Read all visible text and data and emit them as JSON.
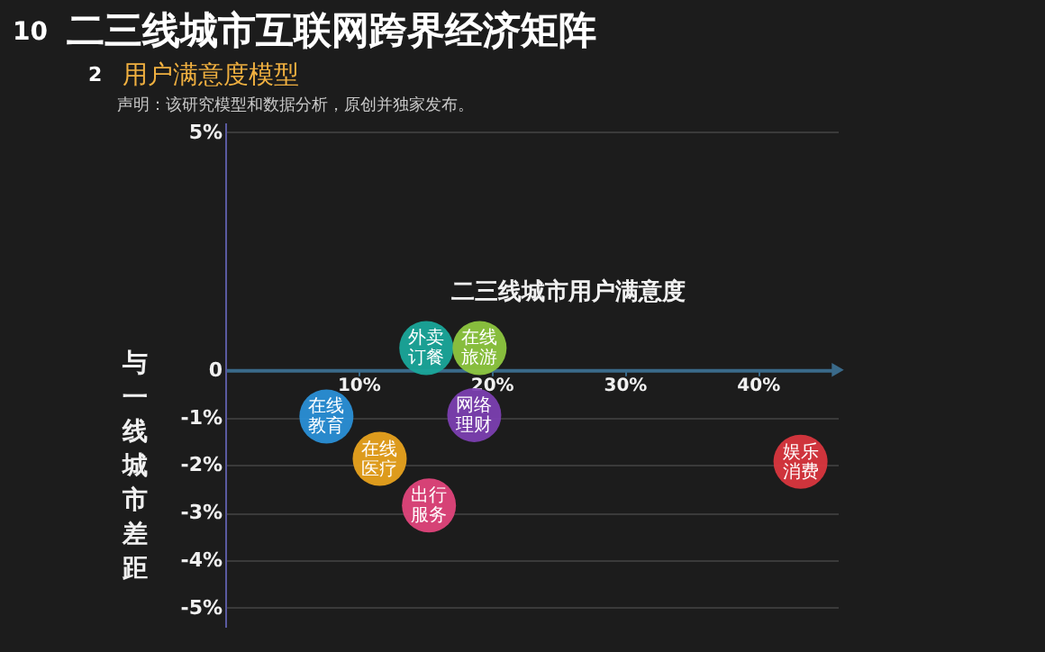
{
  "chart_data": {
    "type": "scatter",
    "title": "二三线城市互联网跨界经济矩阵",
    "subtitle": "用户满意度模型",
    "annotations": [
      "10",
      "2",
      "声明：该研究模型和数据分析，原创并独家发布。"
    ],
    "xlabel": "二三线城市用户满意度",
    "ylabel": "与一线城市差距",
    "xlim": [
      0,
      46
    ],
    "xticks": [
      {
        "value": 10,
        "label": "10%"
      },
      {
        "value": 20,
        "label": "20%"
      },
      {
        "value": 30,
        "label": "30%"
      },
      {
        "value": 40,
        "label": "40%"
      }
    ],
    "ylim": [
      -5.4,
      5.2
    ],
    "yticks": [
      {
        "value": 5,
        "label": "5%"
      },
      0,
      {
        "value": -1,
        "label": "-1%"
      },
      {
        "value": -2,
        "label": "-2%"
      },
      {
        "value": -3,
        "label": "-3%"
      },
      {
        "value": -4,
        "label": "-4%"
      },
      {
        "value": -5,
        "label": "-5%"
      }
    ],
    "grid": "y",
    "legend": false,
    "marker": "circle",
    "series": [
      {
        "name": "外卖订餐",
        "color": "#1aa79a",
        "x": [
          15.1
        ],
        "values": [
          0.46
        ]
      },
      {
        "name": "在线旅游",
        "color": "#8dc63f",
        "x": [
          19.1
        ],
        "values": [
          0.46
        ]
      },
      {
        "name": "在线教育",
        "color": "#2a8fd6",
        "x": [
          7.6
        ],
        "values": [
          -0.98
        ]
      },
      {
        "name": "网络理财",
        "color": "#7b3fb0",
        "x": [
          18.7
        ],
        "values": [
          -0.95
        ]
      },
      {
        "name": "在线医疗",
        "color": "#e8a21e",
        "x": [
          11.6
        ],
        "values": [
          -1.87
        ]
      },
      {
        "name": "出行服务",
        "color": "#e0457b",
        "x": [
          15.3
        ],
        "values": [
          -2.85
        ]
      },
      {
        "name": "娱乐消费",
        "color": "#d9363e",
        "x": [
          43.2
        ],
        "values": [
          -1.93
        ]
      }
    ]
  }
}
